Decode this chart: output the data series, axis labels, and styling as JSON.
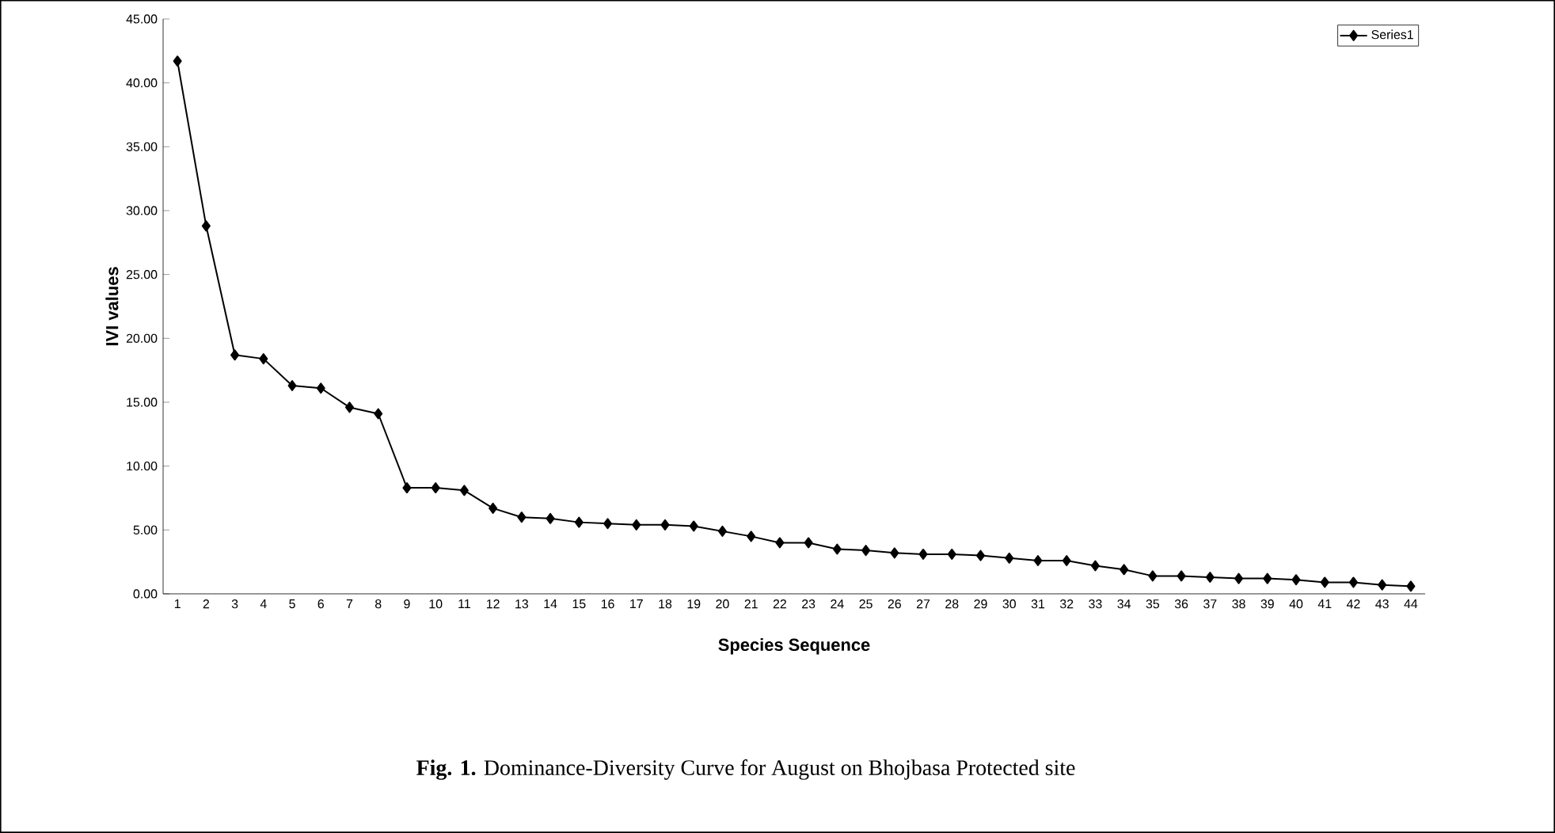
{
  "chart_data": {
    "type": "line",
    "xlabel": "Species Sequence",
    "ylabel": "IVI values",
    "categories": [
      "1",
      "2",
      "3",
      "4",
      "5",
      "6",
      "7",
      "8",
      "9",
      "10",
      "11",
      "12",
      "13",
      "14",
      "15",
      "16",
      "17",
      "18",
      "19",
      "20",
      "21",
      "22",
      "23",
      "24",
      "25",
      "26",
      "27",
      "28",
      "29",
      "30",
      "31",
      "32",
      "33",
      "34",
      "35",
      "36",
      "37",
      "38",
      "39",
      "40",
      "41",
      "42",
      "43",
      "44"
    ],
    "series": [
      {
        "name": "Series1",
        "color": "#000000",
        "values": [
          41.7,
          28.8,
          18.7,
          18.4,
          16.3,
          16.1,
          14.6,
          14.1,
          8.3,
          8.3,
          8.1,
          6.7,
          6.0,
          5.9,
          5.6,
          5.5,
          5.4,
          5.4,
          5.3,
          4.9,
          4.5,
          4.0,
          4.0,
          3.5,
          3.4,
          3.2,
          3.1,
          3.1,
          3.0,
          2.8,
          2.6,
          2.6,
          2.2,
          1.9,
          1.4,
          1.4,
          1.3,
          1.2,
          1.2,
          1.1,
          0.9,
          0.9,
          0.7,
          0.6
        ]
      }
    ],
    "ylim": [
      0,
      45
    ],
    "yticks": [
      {
        "value": 0,
        "label": "0.00"
      },
      {
        "value": 5,
        "label": "5.00"
      },
      {
        "value": 10,
        "label": "10.00"
      },
      {
        "value": 15,
        "label": "15.00"
      },
      {
        "value": 20,
        "label": "20.00"
      },
      {
        "value": 25,
        "label": "25.00"
      },
      {
        "value": 30,
        "label": "30.00"
      },
      {
        "value": 35,
        "label": "35.00"
      },
      {
        "value": 40,
        "label": "40.00"
      },
      {
        "value": 45,
        "label": "45.00"
      }
    ],
    "annotations": [
      "**Fig. 1.** Dominance-Diversity Curve for August on Bhojbasa Protected site"
    ],
    "legend": "top right",
    "grid": false,
    "marker": "diamond",
    "line_style": "solid"
  }
}
